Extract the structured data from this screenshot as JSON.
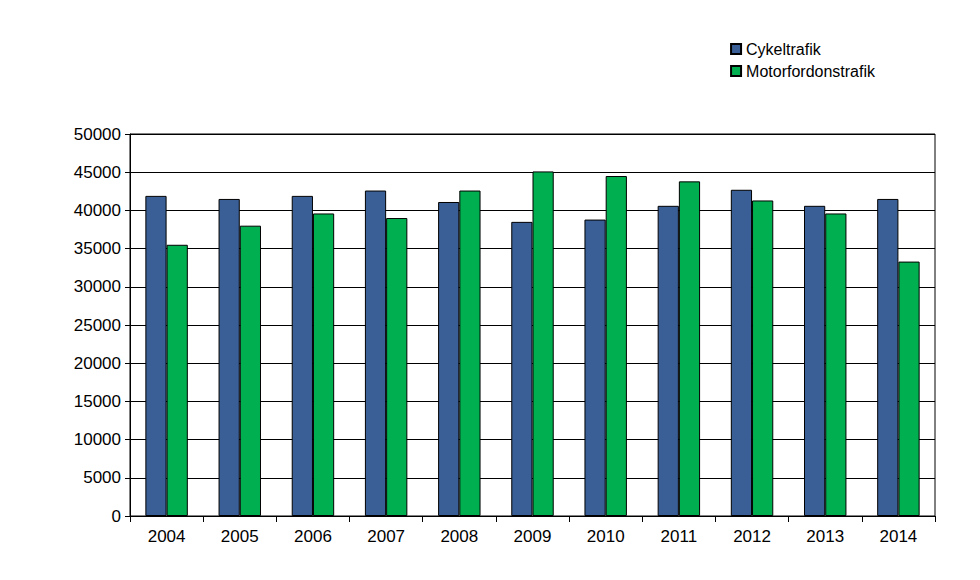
{
  "chart_data": {
    "type": "bar",
    "categories": [
      "2004",
      "2005",
      "2006",
      "2007",
      "2008",
      "2009",
      "2010",
      "2011",
      "2012",
      "2013",
      "2014"
    ],
    "series": [
      {
        "name": "Cykeltrafik",
        "color": "#3a5f96",
        "values": [
          41900,
          41500,
          41900,
          42600,
          41100,
          38500,
          38800,
          40600,
          42700,
          40600,
          41500
        ]
      },
      {
        "name": "Motorfordonstrafik",
        "color": "#00b050",
        "values": [
          35500,
          38000,
          39600,
          39000,
          42600,
          45100,
          44500,
          43800,
          41300,
          39600,
          33300
        ]
      }
    ],
    "ylim": [
      0,
      50000
    ],
    "yticks": [
      0,
      5000,
      10000,
      15000,
      20000,
      25000,
      30000,
      35000,
      40000,
      45000,
      50000
    ],
    "grid": true,
    "legend": "top-right"
  }
}
